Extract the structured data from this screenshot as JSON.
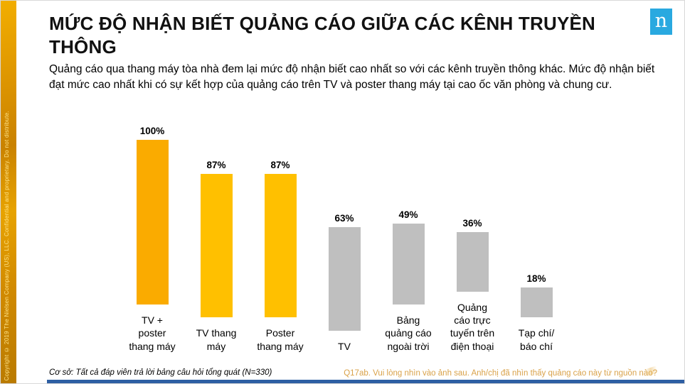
{
  "header": {
    "title": "MỨC ĐỘ NHẬN BIẾT QUẢNG CÁO GIỮA CÁC KÊNH TRUYỀN THÔNG",
    "subtitle": "Quảng cáo qua thang máy tòa nhà đem lại mức độ nhận biết cao nhất so với các kênh truyền thông khác. Mức độ nhận biết đạt mức cao nhất khi có sự kết hợp của quảng cáo trên TV và poster thang máy tại cao ốc văn phòng và chung cư."
  },
  "logo": {
    "letter": "n",
    "bg_color": "#29A9E0",
    "name": "nielsen-logo"
  },
  "sidebar": {
    "copyright": "Copyright © 2019 The Nielsen Company (US), LLC. Confidential and proprietary. Do not distribute.",
    "text_color": "#FFE489",
    "ribbon_color": "#DC9400"
  },
  "chart_data": {
    "type": "bar",
    "title": "",
    "xlabel": "",
    "ylabel": "",
    "ylim": [
      0,
      100
    ],
    "grid": false,
    "legend": false,
    "categories": [
      "TV +\nposter\nthang máy",
      "TV thang\nmáy",
      "Poster\nthang máy",
      "TV",
      "Bảng\nquảng cáo\nngoài trời",
      "Quảng\ncáo trực\ntuyến trên\nđiện thoại",
      "Tạp chí/\nbáo chí"
    ],
    "values": [
      100,
      87,
      87,
      63,
      49,
      36,
      18
    ],
    "value_labels": [
      "100%",
      "87%",
      "87%",
      "63%",
      "49%",
      "36%",
      "18%"
    ],
    "bar_colors": [
      "#FAAB00",
      "#FFC000",
      "#FFC000",
      "#BFBFBF",
      "#BFBFBF",
      "#BFBFBF",
      "#BFBFBF"
    ],
    "highlight_color": "#FFC000",
    "muted_color": "#BFBFBF"
  },
  "footer": {
    "base_text": "Cơ sở: Tất cả đáp viên trả lời bảng câu hỏi tổng quát (N=330)",
    "question_text": "Q17ab. Vui lòng nhìn vào ảnh sau. Anh/chị đã nhìn thấy quảng cáo này từ nguồn nào?",
    "question_color": "#D9A24A",
    "bottom_bar_color": "#2E5FA3"
  }
}
